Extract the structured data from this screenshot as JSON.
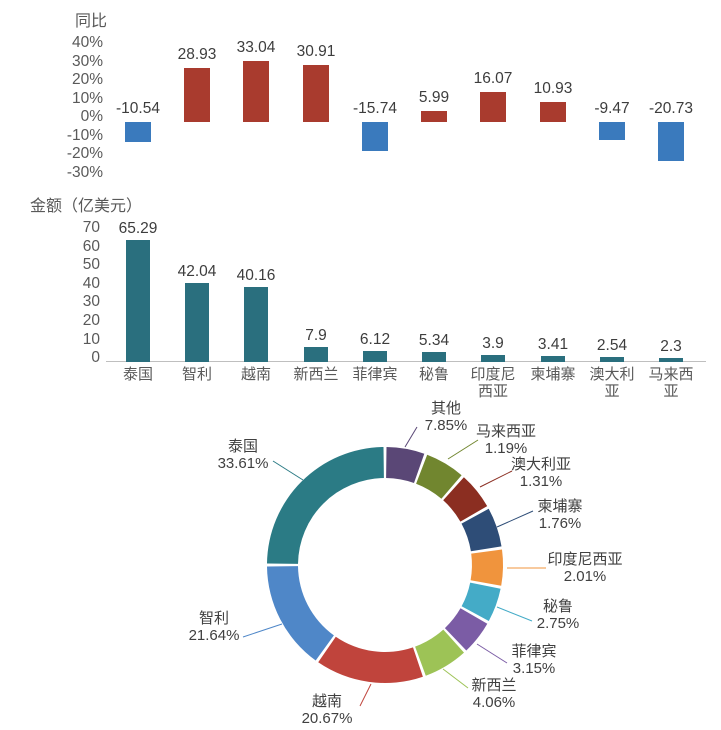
{
  "chart_data": [
    {
      "type": "bar",
      "name": "yoy-growth",
      "title": "同比",
      "ylabel": "",
      "y_ticks": [
        "40%",
        "30%",
        "20%",
        "10%",
        "0%",
        "-10%",
        "-20%",
        "-30%"
      ],
      "ylim": [
        -30,
        40
      ],
      "grid": false,
      "x_axis_labels_shown": false,
      "categories": [
        "泰国",
        "智利",
        "越南",
        "新西兰",
        "菲律宾",
        "秘鲁",
        "印度尼西亚",
        "柬埔寨",
        "澳大利亚",
        "马来西亚"
      ],
      "values": [
        -10.54,
        28.93,
        33.04,
        30.91,
        -15.74,
        5.99,
        16.07,
        10.93,
        -9.47,
        -20.73
      ],
      "value_labels": [
        "-10.54",
        "28.93",
        "33.04",
        "30.91",
        "-15.74",
        "5.99",
        "16.07",
        "10.93",
        "-9.47",
        "-20.73"
      ],
      "positive_color": "#a93b2e",
      "negative_color": "#3a7abd"
    },
    {
      "type": "bar",
      "name": "amount",
      "title": "金额（亿美元）",
      "y_ticks": [
        "70",
        "60",
        "50",
        "40",
        "30",
        "20",
        "10",
        "0"
      ],
      "ylim": [
        0,
        70
      ],
      "grid": false,
      "categories": [
        "泰国",
        "智利",
        "越南",
        "新西兰",
        "菲律宾",
        "秘鲁",
        "印度尼西亚",
        "柬埔寨",
        "澳大利亚",
        "马来西亚"
      ],
      "category_lines": [
        [
          "泰国"
        ],
        [
          "智利"
        ],
        [
          "越南"
        ],
        [
          "新西兰"
        ],
        [
          "菲律宾"
        ],
        [
          "秘鲁"
        ],
        [
          "印度尼",
          "西亚"
        ],
        [
          "柬埔寨"
        ],
        [
          "澳大利",
          "亚"
        ],
        [
          "马来西",
          "亚"
        ]
      ],
      "values": [
        65.29,
        42.04,
        40.16,
        7.9,
        6.12,
        5.34,
        3.9,
        3.41,
        2.54,
        2.3
      ],
      "value_labels": [
        "65.29",
        "42.04",
        "40.16",
        "7.9",
        "6.12",
        "5.34",
        "3.9",
        "3.41",
        "2.54",
        "2.3"
      ],
      "bar_color": "#2a6f7e",
      "axis_line_color": "#bfbfbf"
    },
    {
      "type": "pie",
      "name": "share-donut",
      "donut": true,
      "legend_position": "outside-callouts",
      "segments": [
        {
          "label": "其他",
          "pct_label": "7.85%",
          "value": 7.85,
          "color": "#5a4776"
        },
        {
          "label": "马来西亚",
          "pct_label": "1.19%",
          "value": 1.19,
          "color": "#71862f"
        },
        {
          "label": "澳大利亚",
          "pct_label": "1.31%",
          "value": 1.31,
          "color": "#8b2e21"
        },
        {
          "label": "柬埔寨",
          "pct_label": "1.76%",
          "value": 1.76,
          "color": "#2e4d77"
        },
        {
          "label": "印度尼西亚",
          "pct_label": "2.01%",
          "value": 2.01,
          "color": "#f0943d"
        },
        {
          "label": "秘鲁",
          "pct_label": "2.75%",
          "value": 2.75,
          "color": "#44abc7"
        },
        {
          "label": "菲律宾",
          "pct_label": "3.15%",
          "value": 3.15,
          "color": "#7b5ca5"
        },
        {
          "label": "新西兰",
          "pct_label": "4.06%",
          "value": 4.06,
          "color": "#9dc356"
        },
        {
          "label": "越南",
          "pct_label": "20.67%",
          "value": 20.67,
          "color": "#c0443c"
        },
        {
          "label": "智利",
          "pct_label": "21.64%",
          "value": 21.64,
          "color": "#4f87c8"
        },
        {
          "label": "泰国",
          "pct_label": "33.61%",
          "value": 33.61,
          "color": "#2b7b85"
        }
      ],
      "segment_angles_deg": [
        [
          0,
          20.2
        ],
        [
          20.2,
          41.2
        ],
        [
          41.2,
          60.8
        ],
        [
          60.8,
          81.7
        ],
        [
          81.7,
          100.9
        ],
        [
          100.9,
          119.1
        ],
        [
          119.1,
          137.2
        ],
        [
          137.2,
          160.5
        ],
        [
          160.5,
          215.2
        ],
        [
          215.2,
          270
        ],
        [
          270,
          360
        ]
      ]
    }
  ],
  "text_colors": {
    "axis": "#595959",
    "value": "#3d3d3d"
  }
}
